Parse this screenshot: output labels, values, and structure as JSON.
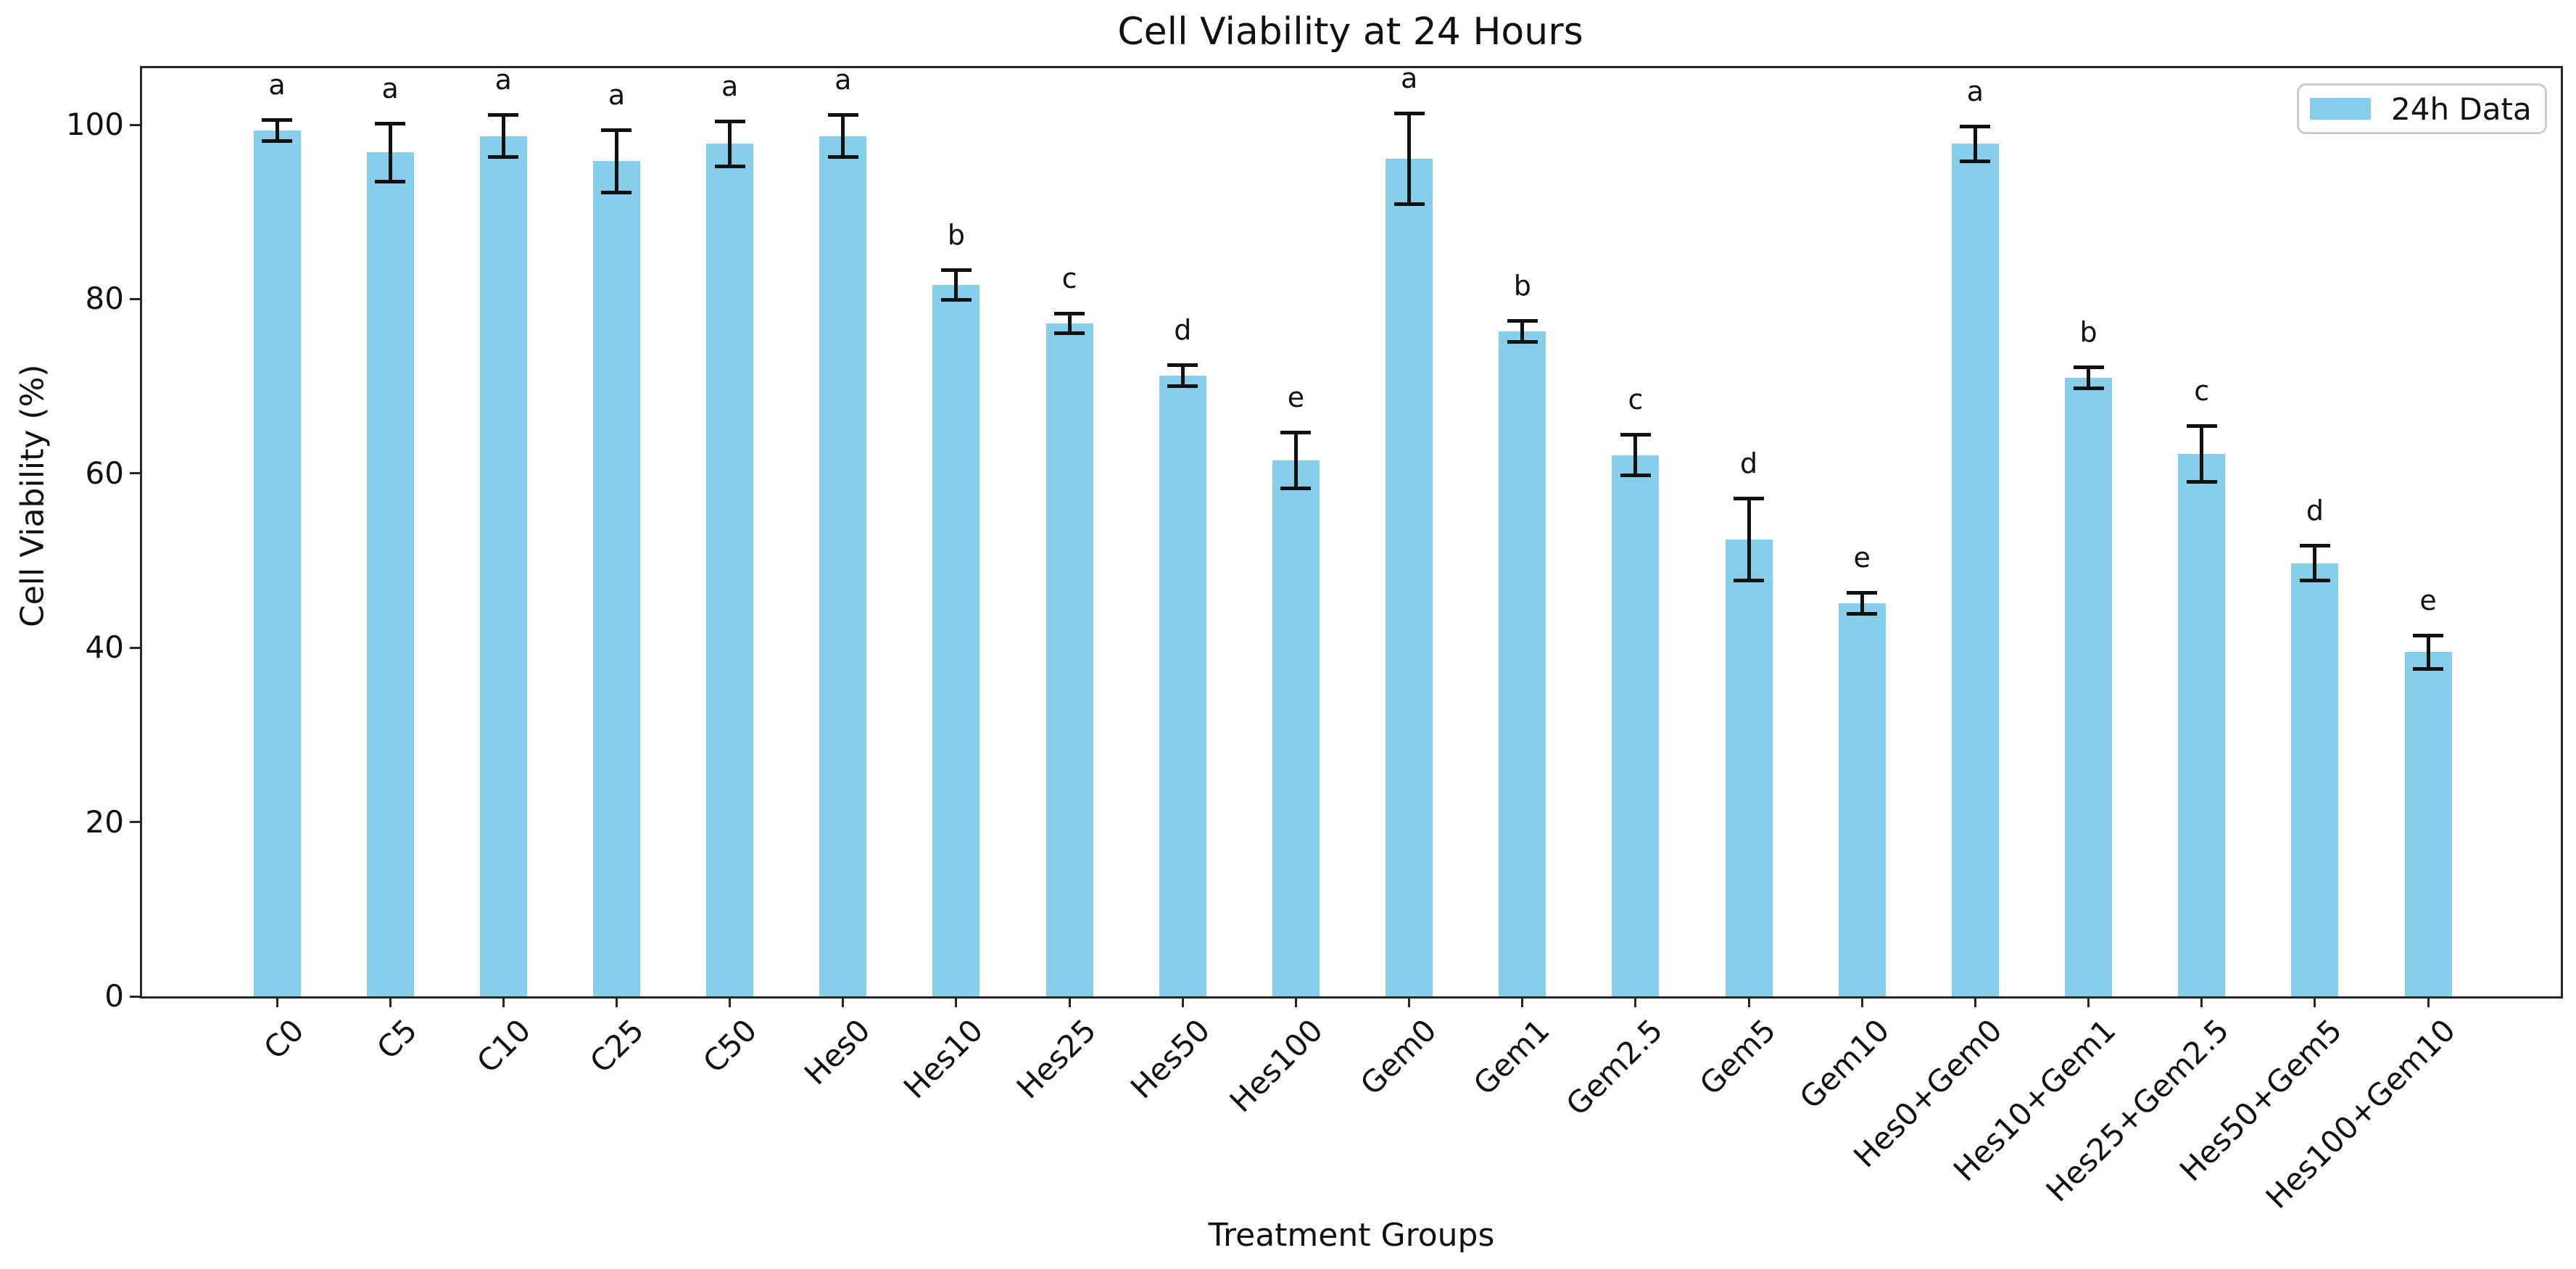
{
  "figure": {
    "title": "Cell Viability at 24 Hours",
    "x_axis_title": "Treatment Groups",
    "y_axis_title": "Cell Viability (%)",
    "legend": {
      "label": "24h Data"
    }
  },
  "chart_data": {
    "type": "bar",
    "title": "Cell Viability at 24 Hours",
    "xlabel": "Treatment Groups",
    "ylabel": "Cell Viability (%)",
    "ylim": [
      0,
      106.7
    ],
    "yticks": [
      0,
      20,
      40,
      60,
      80,
      100
    ],
    "grid": false,
    "legend_position": "upper right",
    "categories": [
      "C0",
      "C5",
      "C10",
      "C25",
      "C50",
      "Hes0",
      "Hes10",
      "Hes25",
      "Hes50",
      "Hes100",
      "Gem0",
      "Gem1",
      "Gem2.5",
      "Gem5",
      "Gem10",
      "Hes0+Gem0",
      "Hes10+Gem1",
      "Hes25+Gem2.5",
      "Hes50+Gem5",
      "Hes100+Gem10"
    ],
    "series": [
      {
        "name": "24h Data",
        "values": [
          99.3,
          96.8,
          98.7,
          95.8,
          97.8,
          98.7,
          81.6,
          77.2,
          71.2,
          61.5,
          96.1,
          76.3,
          62.1,
          52.4,
          45.1,
          97.8,
          71.0,
          62.2,
          49.7,
          39.5
        ],
        "errors": [
          1.2,
          3.3,
          2.4,
          3.6,
          2.6,
          2.4,
          1.7,
          1.1,
          1.2,
          3.2,
          5.2,
          1.2,
          2.3,
          4.7,
          1.2,
          2.0,
          1.2,
          3.2,
          2.0,
          1.9
        ],
        "sig_letters": [
          "a",
          "a",
          "a",
          "a",
          "a",
          "a",
          "b",
          "c",
          "d",
          "e",
          "a",
          "b",
          "c",
          "d",
          "e",
          "a",
          "b",
          "c",
          "d",
          "e"
        ]
      }
    ],
    "style": {
      "bar_color": "#87CEEB",
      "error_color": "#111111",
      "spine_color": "#262626",
      "text_color": "#111111",
      "background": "#ffffff"
    }
  }
}
